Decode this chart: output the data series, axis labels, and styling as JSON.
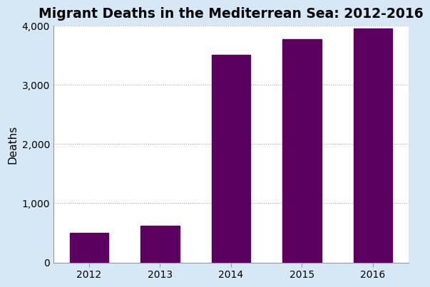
{
  "title": "Migrant Deaths in the Mediterrean Sea: 2012-2016",
  "categories": [
    "2012",
    "2013",
    "2014",
    "2015",
    "2016"
  ],
  "values": [
    500,
    620,
    3500,
    3770,
    3950
  ],
  "bar_color": "#5B0060",
  "ylabel": "Deaths",
  "ylim": [
    0,
    4000
  ],
  "yticks": [
    0,
    1000,
    2000,
    3000,
    4000
  ],
  "ytick_labels": [
    "0",
    "1,000",
    "2,000",
    "3,000",
    "4,000"
  ],
  "background_color": "#d6e8f5",
  "plot_bg_color": "#ffffff",
  "title_fontsize": 13.5,
  "axis_fontsize": 11,
  "tick_fontsize": 10,
  "grid_color": "#aaaaaa",
  "bar_width": 0.55
}
